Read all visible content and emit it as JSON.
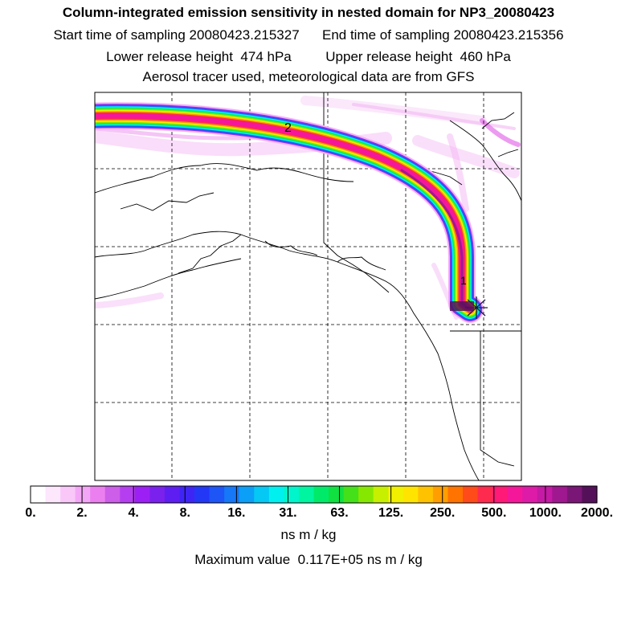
{
  "header": {
    "title": "Column-integrated emission sensitivity in nested domain for NP3_20080423",
    "line1": "Start time of sampling 20080423.215327      End time of sampling 20080423.215356",
    "line2": "Lower release height  474 hPa         Upper release height  460 hPa",
    "line3": "Aerosol tracer used, meteorological data are from GFS"
  },
  "map": {
    "track_labels": [
      "1",
      "2"
    ],
    "release_marker": "asterisk-icon"
  },
  "colorbar": {
    "tick_labels": [
      "0.",
      "2.",
      "4.",
      "8.",
      "16.",
      "31.",
      "63.",
      "125.",
      "250.",
      "500.",
      "1000.",
      "2000."
    ],
    "colors": [
      "#ffffff",
      "#fde7fd",
      "#f9c8f9",
      "#f3a6f6",
      "#eb7ff0",
      "#cc5ee9",
      "#b63ef1",
      "#9c20f5",
      "#7a21ee",
      "#5e1ef1",
      "#3f25f5",
      "#2338f7",
      "#1d55f7",
      "#1678f7",
      "#0b9ff7",
      "#05c8f5",
      "#00f0f0",
      "#00f5cc",
      "#00f5a0",
      "#00ea6a",
      "#10e040",
      "#44e01a",
      "#86e800",
      "#c6f000",
      "#f0f000",
      "#ffe400",
      "#ffc200",
      "#ff9e00",
      "#ff7300",
      "#ff4a1a",
      "#ff2b4e",
      "#ff1a78",
      "#f5179a",
      "#de1ba8",
      "#c41aa5",
      "#a0188f",
      "#7a1776",
      "#55105a"
    ],
    "units": "ns m / kg",
    "max_value": "Maximum value  0.117E+05 ns m / kg"
  }
}
